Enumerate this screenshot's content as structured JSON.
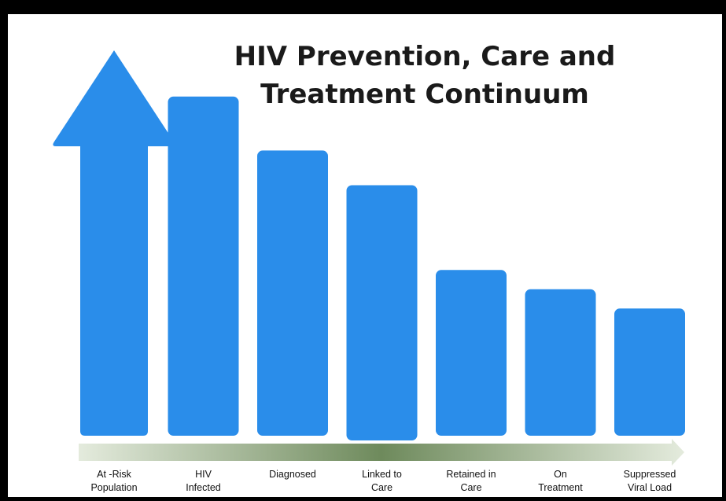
{
  "chart_data": {
    "type": "bar",
    "title_lines": [
      "HIV Prevention, Care and",
      "Treatment Continuum"
    ],
    "categories": [
      "At -Risk\nPopulation",
      "HIV\nInfected",
      "Diagnosed",
      "Linked to\nCare",
      "Retained in\nCare",
      "On\nTreatment",
      "Suppressed\nViral Load"
    ],
    "values": [
      100,
      88,
      74,
      65,
      43,
      38,
      33
    ],
    "first_bar_shape": "up-arrow",
    "bottom_arrow": "right",
    "xlabel": "",
    "ylabel": "",
    "grid": false,
    "legend": "none",
    "colors": {
      "bar": "#2A8DEA",
      "arrow_dark": "#6E8A5C",
      "arrow_light": "#E4EBDD",
      "title": "#1a1a1a",
      "frame": "#000000",
      "background": "#ffffff"
    }
  }
}
